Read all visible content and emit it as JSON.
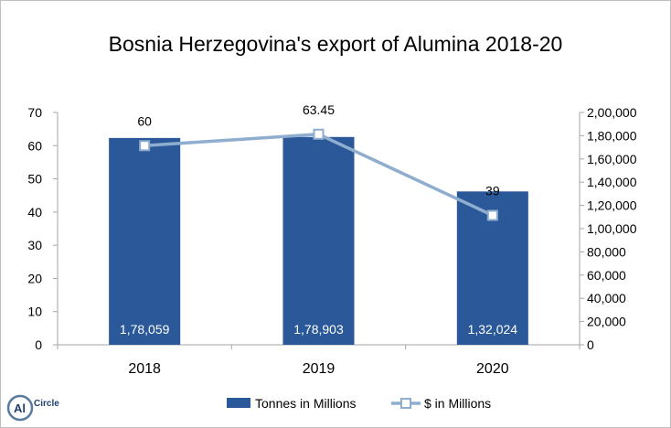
{
  "chart_data": {
    "type": "bar",
    "title": "Bosnia Herzegovina's export of Alumina 2018-20",
    "categories": [
      "2018",
      "2019",
      "2020"
    ],
    "series": [
      {
        "name": "Tonnes in Millions",
        "chart": "bar",
        "axis": "right",
        "values": [
          178059,
          178903,
          132024
        ],
        "labels": [
          "1,78,059",
          "1,78,903",
          "1,32,024"
        ],
        "color": "#2a5898"
      },
      {
        "name": "$ in Millions",
        "chart": "line",
        "axis": "left",
        "values": [
          60,
          63.45,
          39
        ],
        "labels": [
          "60",
          "63.45",
          "39"
        ],
        "color": "#8fadce"
      }
    ],
    "y_left": {
      "lim": [
        0,
        70
      ],
      "ticks": [
        "0",
        "10",
        "20",
        "30",
        "40",
        "50",
        "60",
        "70"
      ]
    },
    "y_right": {
      "lim": [
        0,
        200000
      ],
      "ticks": [
        "0",
        "20,000",
        "40,000",
        "60,000",
        "80,000",
        "1,00,000",
        "1,20,000",
        "1,40,000",
        "1,60,000",
        "1,80,000",
        "2,00,000"
      ]
    },
    "grid": false,
    "legend": "bottom"
  },
  "logo": {
    "text": "Al",
    "brand": "Circle"
  }
}
